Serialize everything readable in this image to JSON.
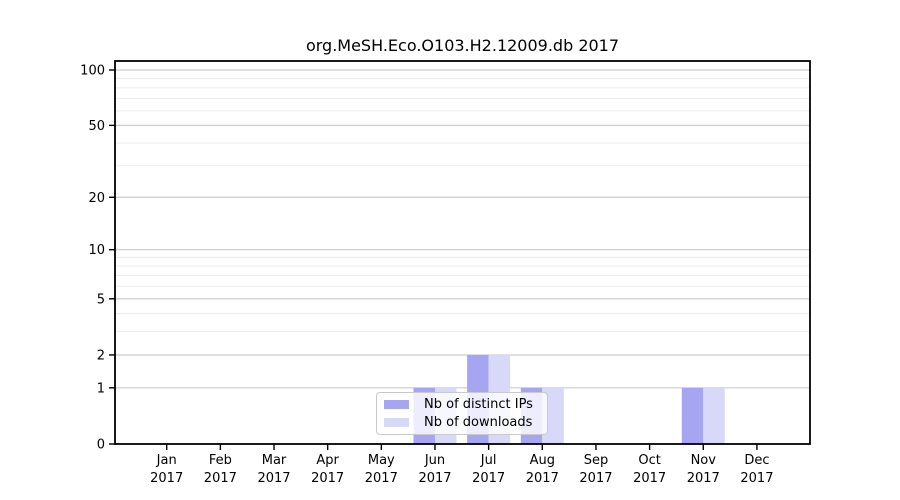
{
  "chart_data": {
    "type": "bar",
    "title": "org.MeSH.Eco.O103.H2.12009.db 2017",
    "categories": [
      "Jan",
      "Feb",
      "Mar",
      "Apr",
      "May",
      "Jun",
      "Jul",
      "Aug",
      "Sep",
      "Oct",
      "Nov",
      "Dec"
    ],
    "x_sublabel": "2017",
    "series": [
      {
        "name": "Nb of distinct IPs",
        "color": "#a5a5f2",
        "values": [
          0,
          0,
          0,
          0,
          0,
          1,
          2,
          1,
          0,
          0,
          1,
          0
        ]
      },
      {
        "name": "Nb of downloads",
        "color": "#d8d8f8",
        "values": [
          0,
          0,
          0,
          0,
          0,
          1,
          2,
          1,
          0,
          0,
          1,
          0
        ]
      }
    ],
    "xlabel": "",
    "ylabel": "",
    "yscale": "log1p",
    "ylim": [
      0,
      100
    ],
    "yticks": [
      0,
      1,
      2,
      5,
      10,
      20,
      50,
      100
    ],
    "yticks_minor": [
      3,
      4,
      6,
      7,
      8,
      9,
      30,
      40,
      60,
      70,
      80,
      90
    ],
    "grid": true,
    "grid_major_color": "#cccccc",
    "grid_minor_color": "#ececec",
    "axis_color": "#000000",
    "legend_position": "bottom-center"
  }
}
